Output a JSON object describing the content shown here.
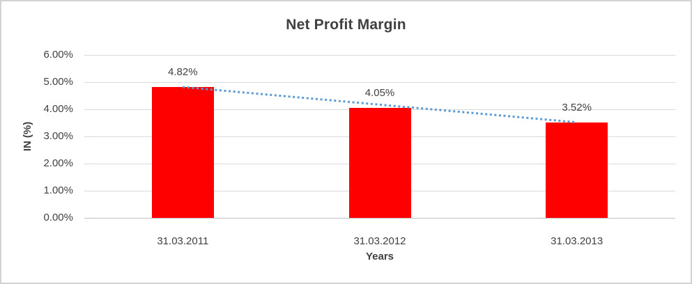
{
  "chart_data": {
    "type": "bar",
    "title": "Net Profit Margin",
    "xlabel": "Years",
    "ylabel": "IN (%)",
    "categories": [
      "31.03.2011",
      "31.03.2012",
      "31.03.2013"
    ],
    "series": [
      {
        "name": "Net Profit Margin",
        "values": [
          4.82,
          4.05,
          3.52
        ],
        "data_labels": [
          "4.82%",
          "4.05%",
          "3.52%"
        ]
      }
    ],
    "ylim": [
      0,
      6
    ],
    "ytick_labels": [
      "0.00%",
      "1.00%",
      "2.00%",
      "3.00%",
      "4.00%",
      "5.00%",
      "6.00%"
    ],
    "grid": true,
    "legend": "none",
    "trendline": {
      "type": "linear",
      "style": "dotted",
      "start_value": 4.82,
      "end_value": 3.52
    },
    "colors": {
      "bar": "#ff0000",
      "trendline": "#5b9bd5",
      "gridline": "#d9d9d9",
      "axis_line": "#bfbfbf",
      "text": "#404040"
    }
  }
}
